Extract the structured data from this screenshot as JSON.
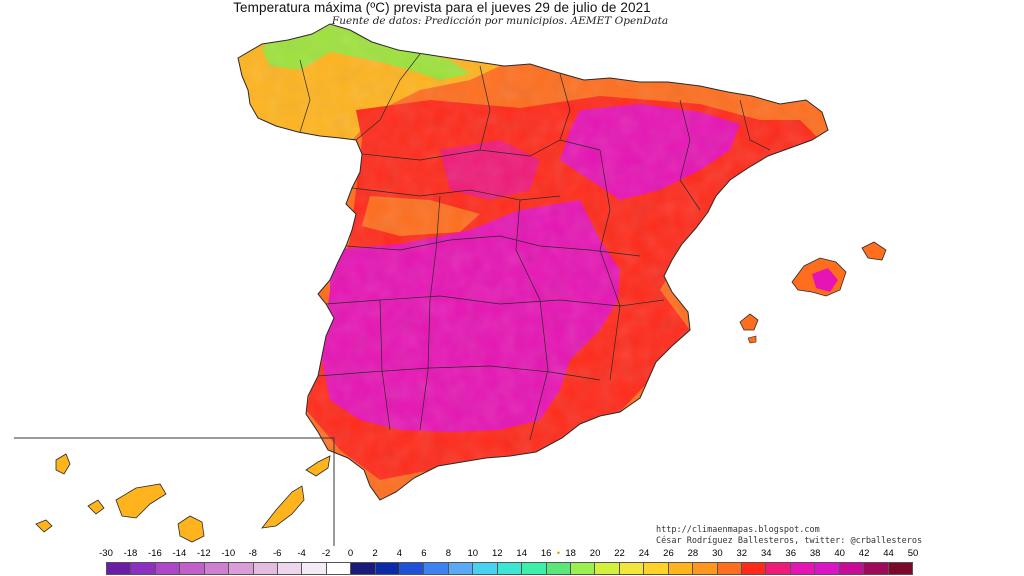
{
  "title": "Temperatura máxima (ºC) prevista para el jueves 29 de julio de 2021",
  "subtitle": "Fuente de datos: Predicción por municipios. AEMET OpenData",
  "credits": {
    "url": "http://climaenmapas.blogspot.com",
    "author": "César Rodríguez Ballesteros, twitter: @crballesteros"
  },
  "legend": {
    "unit_label": "ºC",
    "ticks": [
      "-30",
      "-18",
      "-16",
      "-14",
      "-12",
      "-10",
      "-8",
      "-6",
      "-4",
      "-2",
      "0",
      "2",
      "4",
      "6",
      "8",
      "10",
      "12",
      "14",
      "16",
      "18",
      "20",
      "22",
      "24",
      "26",
      "28",
      "30",
      "32",
      "34",
      "36",
      "38",
      "40",
      "42",
      "44",
      "50"
    ],
    "colors": [
      "#6a1ea8",
      "#8d2fc0",
      "#ad46c8",
      "#c160c8",
      "#cf7fd0",
      "#d99ed8",
      "#e4bce2",
      "#eed6ee",
      "#f3ecf4",
      "#ffffff",
      "#1a1a7a",
      "#0a2aa8",
      "#1e50d8",
      "#3c82f0",
      "#5aa8f8",
      "#46d2f0",
      "#3ce6d2",
      "#3cf0aa",
      "#5ae678",
      "#9af050",
      "#d2f03c",
      "#f0e63c",
      "#ffd22a",
      "#ffb41e",
      "#ff961e",
      "#ff6e1e",
      "#ff2a1a",
      "#f01a78",
      "#e614b4",
      "#dc14c8",
      "#c80a96",
      "#a00a5a",
      "#7a0a28"
    ],
    "marker_between": "14-16"
  },
  "map": {
    "region": "Península Ibérica (España), Islas Baleares, Islas Canarias",
    "colors": {
      "north_coast": "#9ee23c",
      "northwest": "#ffb41e",
      "warm": "#ff6e1e",
      "hot": "#ff2a1a",
      "very_hot": "#f01a78",
      "extreme": "#e614b4",
      "border": "#2a2a2a",
      "sea": "#ffffff"
    }
  }
}
